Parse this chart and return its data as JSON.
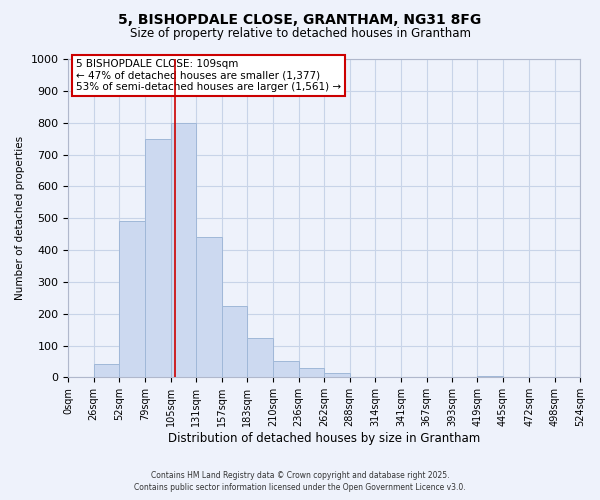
{
  "title_line1": "5, BISHOPDALE CLOSE, GRANTHAM, NG31 8FG",
  "title_line2": "Size of property relative to detached houses in Grantham",
  "xlabel": "Distribution of detached houses by size in Grantham",
  "ylabel": "Number of detached properties",
  "bin_labels": [
    "0sqm",
    "26sqm",
    "52sqm",
    "79sqm",
    "105sqm",
    "131sqm",
    "157sqm",
    "183sqm",
    "210sqm",
    "236sqm",
    "262sqm",
    "288sqm",
    "314sqm",
    "341sqm",
    "367sqm",
    "393sqm",
    "419sqm",
    "445sqm",
    "472sqm",
    "498sqm",
    "524sqm"
  ],
  "bin_edges": [
    0,
    26,
    52,
    79,
    105,
    131,
    157,
    183,
    210,
    236,
    262,
    288,
    314,
    341,
    367,
    393,
    419,
    445,
    472,
    498,
    524
  ],
  "bar_heights": [
    0,
    42,
    490,
    750,
    800,
    440,
    225,
    125,
    52,
    28,
    15,
    0,
    0,
    0,
    0,
    0,
    5,
    0,
    0,
    0,
    0
  ],
  "bar_color": "#ccd9f0",
  "bar_edge_color": "#a0b8d8",
  "property_line_x": 109,
  "property_line_color": "#cc0000",
  "annotation_line1": "5 BISHOPDALE CLOSE: 109sqm",
  "annotation_line2": "← 47% of detached houses are smaller (1,377)",
  "annotation_line3": "53% of semi-detached houses are larger (1,561) →",
  "annotation_box_color": "white",
  "annotation_box_edge_color": "#cc0000",
  "ylim": [
    0,
    1000
  ],
  "yticks": [
    0,
    100,
    200,
    300,
    400,
    500,
    600,
    700,
    800,
    900,
    1000
  ],
  "grid_color": "#c8d4e8",
  "background_color": "#eef2fb",
  "footer_line1": "Contains HM Land Registry data © Crown copyright and database right 2025.",
  "footer_line2": "Contains public sector information licensed under the Open Government Licence v3.0."
}
